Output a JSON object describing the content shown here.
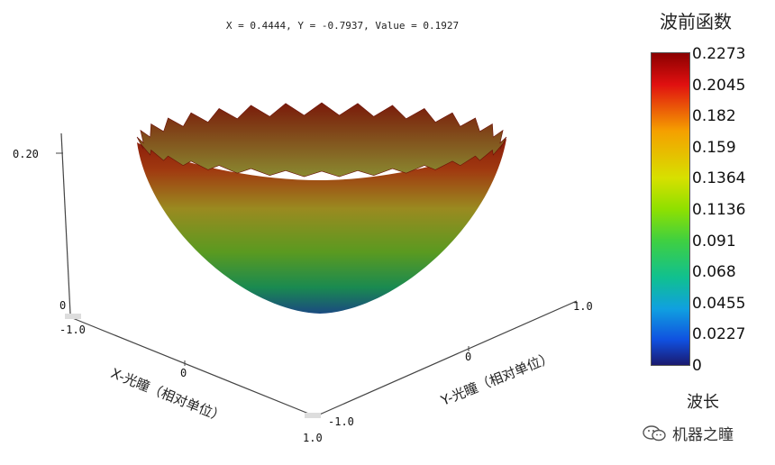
{
  "readout": "X = 0.4444, Y = -0.7937, Value = 0.1927",
  "colorbar": {
    "title": "波前函数",
    "ticks": [
      "0.2273",
      "0.2045",
      "0.182",
      "0.159",
      "0.1364",
      "0.1136",
      "0.091",
      "0.068",
      "0.0455",
      "0.0227",
      "0"
    ],
    "unit": "波长",
    "colors": [
      "#8b0000",
      "#e01010",
      "#f5a000",
      "#d7e000",
      "#8fe000",
      "#40d040",
      "#10c090",
      "#10a0e0",
      "#1050e0",
      "#1a1a70"
    ]
  },
  "watermark": {
    "text": "机器之瞳",
    "icon": "wechat-icon"
  },
  "chart_data": {
    "type": "surface",
    "xlabel": "X-光瞳（相对单位）",
    "ylabel": "Y-光瞳（相对单位）",
    "zlabel": "",
    "x_ticks": [
      "-1.0",
      "0",
      "1.0"
    ],
    "y_ticks": [
      "-1.0",
      "0",
      "1.0"
    ],
    "z_ticks": [
      "0",
      "0.20"
    ],
    "xlim": [
      -1.0,
      1.0
    ],
    "ylim": [
      -1.0,
      1.0
    ],
    "zlim": [
      0,
      0.2273
    ],
    "surface": "paraboloid bowl, value ≈ 0.2273·(x²+y²), jagged rim at pupil edge"
  }
}
